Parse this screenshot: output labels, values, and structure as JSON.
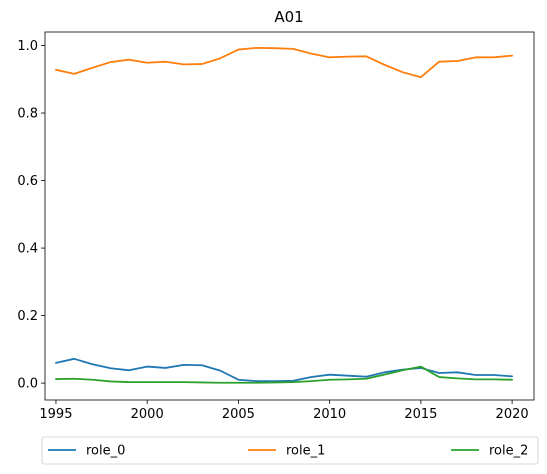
{
  "chart_data": {
    "type": "line",
    "title": "A01",
    "xlabel": "",
    "ylabel": "",
    "xlim": [
      1994.4,
      2021.2
    ],
    "ylim": [
      -0.05,
      1.04
    ],
    "x_ticks": [
      1995,
      2000,
      2005,
      2010,
      2015,
      2020
    ],
    "y_ticks": [
      0.0,
      0.2,
      0.4,
      0.6,
      0.8,
      1.0
    ],
    "x_tick_labels": [
      "1995",
      "2000",
      "2005",
      "2010",
      "2015",
      "2020"
    ],
    "y_tick_labels": [
      "0.0",
      "0.2",
      "0.4",
      "0.6",
      "0.8",
      "1.0"
    ],
    "grid": false,
    "legend_placement": "bottom",
    "x": [
      1995,
      1996,
      1997,
      1998,
      1999,
      2000,
      2001,
      2002,
      2003,
      2004,
      2005,
      2006,
      2007,
      2008,
      2009,
      2010,
      2011,
      2012,
      2013,
      2014,
      2015,
      2016,
      2017,
      2018,
      2019,
      2020
    ],
    "series": [
      {
        "name": "role_0",
        "color": "#1f77b4",
        "values": [
          0.06,
          0.072,
          0.056,
          0.044,
          0.038,
          0.049,
          0.045,
          0.054,
          0.053,
          0.037,
          0.01,
          0.006,
          0.006,
          0.007,
          0.018,
          0.025,
          0.022,
          0.019,
          0.032,
          0.04,
          0.045,
          0.03,
          0.032,
          0.024,
          0.024,
          0.02
        ]
      },
      {
        "name": "role_1",
        "color": "#ff7f0e",
        "values": [
          0.928,
          0.916,
          0.934,
          0.951,
          0.958,
          0.949,
          0.952,
          0.944,
          0.945,
          0.962,
          0.988,
          0.993,
          0.992,
          0.99,
          0.976,
          0.965,
          0.967,
          0.968,
          0.943,
          0.921,
          0.906,
          0.952,
          0.954,
          0.965,
          0.965,
          0.97
        ]
      },
      {
        "name": "role_2",
        "color": "#2ca02c",
        "values": [
          0.012,
          0.013,
          0.01,
          0.005,
          0.003,
          0.003,
          0.003,
          0.003,
          0.002,
          0.001,
          0.001,
          0.001,
          0.002,
          0.003,
          0.006,
          0.01,
          0.011,
          0.013,
          0.025,
          0.038,
          0.049,
          0.018,
          0.014,
          0.011,
          0.011,
          0.01
        ]
      }
    ]
  }
}
